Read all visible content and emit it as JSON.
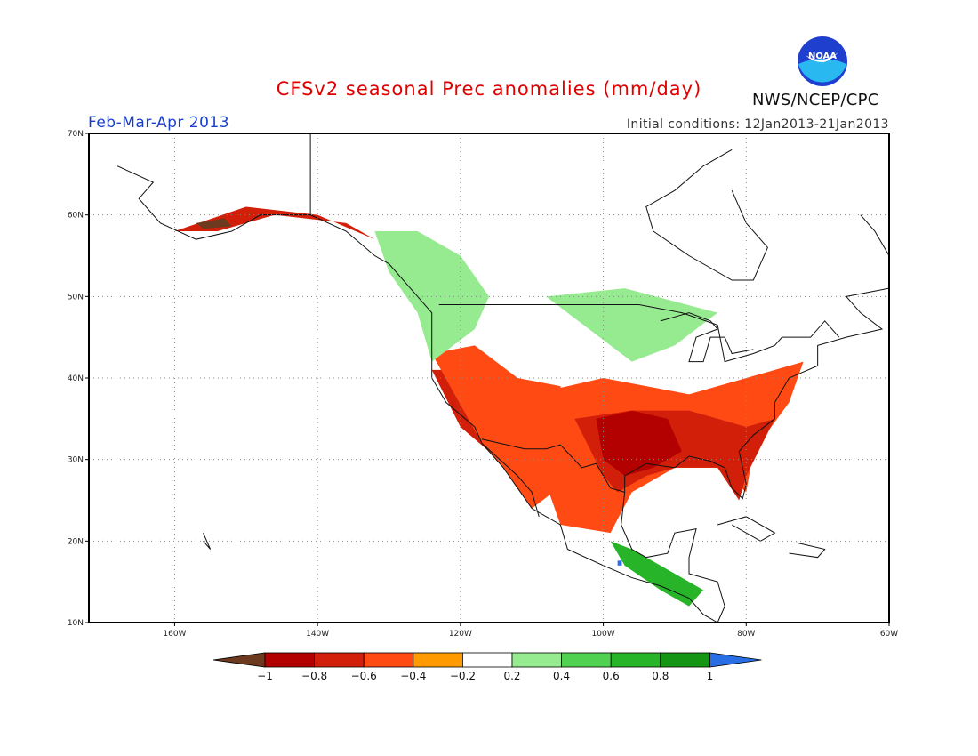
{
  "header": {
    "title": "CFSv2 seasonal Prec anomalies (mm/day)",
    "season": "Feb-Mar-Apr 2013",
    "initial_conditions": "Initial conditions: 12Jan2013-21Jan2013",
    "agency": "NWS/NCEP/CPC",
    "logo_text": "NOAA"
  },
  "map": {
    "projection": "lat-lon",
    "lon_range": [
      -172,
      -60
    ],
    "lat_range": [
      10,
      70
    ],
    "lat_ticks": [
      "10N",
      "20N",
      "30N",
      "40N",
      "50N",
      "60N",
      "70N"
    ],
    "lon_ticks": [
      "160W",
      "140W",
      "120W",
      "100W",
      "80W",
      "60W"
    ],
    "grid": "dotted",
    "colorbar": {
      "labels": [
        "-1",
        "-0.8",
        "-0.6",
        "-0.4",
        "-0.2",
        "0.2",
        "0.4",
        "0.6",
        "0.8",
        "1"
      ],
      "colors": [
        "#6e3a1f",
        "#b30000",
        "#d21f0a",
        "#ff4a14",
        "#ff9b00",
        "#ffffff",
        "#96eb90",
        "#50d250",
        "#28b428",
        "#149614",
        "#2a6ee6"
      ]
    },
    "anomaly_regions": [
      {
        "name": "west-coast-dry",
        "level": "-0.6",
        "poly": [
          [
            -124,
            41
          ],
          [
            -121,
            41
          ],
          [
            -117,
            36
          ],
          [
            -114,
            33
          ],
          [
            -116,
            31
          ],
          [
            -120,
            34
          ]
        ]
      },
      {
        "name": "southwest-dry",
        "level": "-0.4",
        "poly": [
          [
            -124,
            43
          ],
          [
            -118,
            44
          ],
          [
            -112,
            40
          ],
          [
            -106,
            39
          ],
          [
            -104,
            32
          ],
          [
            -107,
            26
          ],
          [
            -110,
            24
          ],
          [
            -114,
            29
          ],
          [
            -117,
            32
          ]
        ]
      },
      {
        "name": "southern-plains-dry",
        "level": "-0.4",
        "poly": [
          [
            -110,
            38
          ],
          [
            -100,
            40
          ],
          [
            -88,
            38
          ],
          [
            -76,
            41
          ],
          [
            -72,
            42
          ],
          [
            -74,
            37
          ],
          [
            -79,
            31
          ],
          [
            -80,
            26
          ],
          [
            -84,
            29
          ],
          [
            -90,
            29
          ],
          [
            -96,
            26
          ],
          [
            -99,
            21
          ],
          [
            -106,
            22
          ],
          [
            -108,
            27
          ]
        ]
      },
      {
        "name": "texas-gulf-dry",
        "level": "-0.6",
        "poly": [
          [
            -104,
            35
          ],
          [
            -96,
            36
          ],
          [
            -88,
            36
          ],
          [
            -80,
            34
          ],
          [
            -76,
            35
          ],
          [
            -80,
            28
          ],
          [
            -81,
            25
          ],
          [
            -84,
            29
          ],
          [
            -90,
            29
          ],
          [
            -94,
            28
          ],
          [
            -98,
            26
          ],
          [
            -100,
            28
          ]
        ]
      },
      {
        "name": "texas-core-dry",
        "level": "-0.8",
        "poly": [
          [
            -101,
            35
          ],
          [
            -96,
            36
          ],
          [
            -91,
            35
          ],
          [
            -89,
            31
          ],
          [
            -93,
            29
          ],
          [
            -97,
            28
          ],
          [
            -100,
            30
          ]
        ]
      },
      {
        "name": "alaska-dry",
        "level": "-0.6",
        "poly": [
          [
            -160,
            58
          ],
          [
            -150,
            61
          ],
          [
            -140,
            60
          ],
          [
            -132,
            57
          ],
          [
            -136,
            59
          ],
          [
            -146,
            60
          ],
          [
            -154,
            58
          ]
        ]
      },
      {
        "name": "alaska-core",
        "level": "-1",
        "poly": [
          [
            -157,
            59
          ],
          [
            -153,
            59.6
          ],
          [
            -152,
            58.6
          ],
          [
            -156,
            58.3
          ]
        ]
      },
      {
        "name": "northern-plains-wet",
        "level": "0.2",
        "poly": [
          [
            -108,
            50
          ],
          [
            -97,
            51
          ],
          [
            -84,
            48
          ],
          [
            -90,
            44
          ],
          [
            -96,
            42
          ],
          [
            -102,
            46
          ]
        ]
      },
      {
        "name": "pacific-nw-wet",
        "level": "0.2",
        "poly": [
          [
            -132,
            58
          ],
          [
            -126,
            58
          ],
          [
            -120,
            55
          ],
          [
            -116,
            50
          ],
          [
            -118,
            46
          ],
          [
            -124,
            42
          ],
          [
            -126,
            48
          ],
          [
            -130,
            53
          ]
        ]
      },
      {
        "name": "mexico-wet",
        "level": "0.6",
        "poly": [
          [
            -99,
            20
          ],
          [
            -96,
            19
          ],
          [
            -90,
            16
          ],
          [
            -86,
            14
          ],
          [
            -88,
            12
          ],
          [
            -92,
            14
          ],
          [
            -97,
            17
          ]
        ]
      },
      {
        "name": "mexico-core-wet",
        "level": "1",
        "poly": [
          [
            -98,
            17.6
          ],
          [
            -97.4,
            17.6
          ],
          [
            -97.4,
            17
          ],
          [
            -98,
            17
          ]
        ]
      }
    ]
  }
}
